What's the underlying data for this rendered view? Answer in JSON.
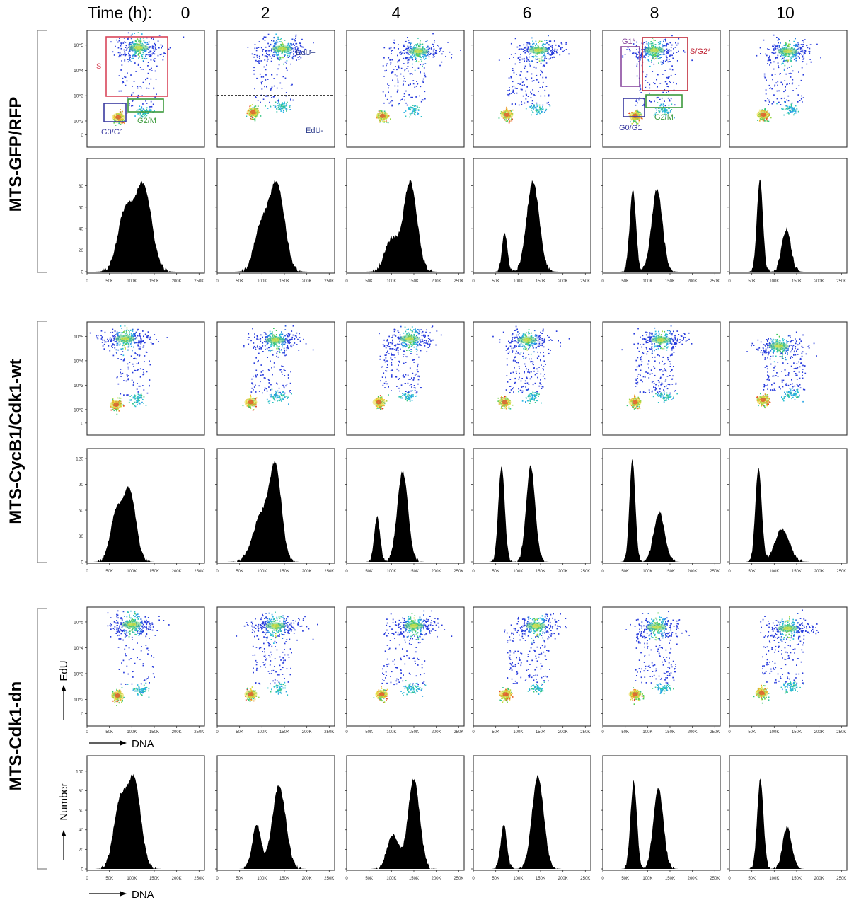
{
  "figure": {
    "time_label": "Time (h):",
    "time_points": [
      "0",
      "2",
      "4",
      "6",
      "8",
      "10"
    ],
    "conditions": [
      "MTS-GFP/RFP",
      "MTS-CycB1/Cdk1-wt",
      "MTS-Cdk1-dn"
    ],
    "axis_labels": {
      "edu": "EdU",
      "dna": "DNA",
      "number": "Number"
    },
    "gates_t0": {
      "s": "S",
      "g0g1": "G0/G1",
      "g2m": "G2/M"
    },
    "gates_t2": {
      "edu_pos": "EdU+",
      "edu_neg": "EdU-"
    },
    "gates_t8": {
      "g1star": "G1*",
      "sg2star": "S/G2*",
      "g0g1": "G0/G1",
      "g2m": "G2/M"
    },
    "colors": {
      "s_gate": "#d9465a",
      "g0g1_gate": "#3a3aa0",
      "g2m_gate": "#3c9a3c",
      "g1star_gate": "#8a4aa0",
      "sg2star_gate": "#c02838",
      "hist_fill": "#000000"
    }
  },
  "chart_data": {
    "type": "scatter",
    "subtype": "flow-cytometry density dot plots with DNA histograms",
    "x_axis": {
      "label": "DNA",
      "ticks": [
        "0",
        "50K",
        "100K",
        "150K",
        "200K",
        "250K"
      ],
      "range": [
        0,
        262144
      ]
    },
    "scatter_y_axis": {
      "label": "EdU",
      "ticks": [
        "0",
        "10^2",
        "10^3",
        "10^4",
        "10^5"
      ]
    },
    "hist_y_axis": {
      "label": "Number",
      "ticks_by_row": [
        [
          "0",
          "20",
          "40",
          "60",
          "80"
        ],
        [
          "0",
          "30",
          "60",
          "90",
          "120"
        ],
        [
          "0",
          "20",
          "40",
          "60",
          "80",
          "100"
        ]
      ],
      "max_by_row": [
        100,
        125,
        110
      ]
    },
    "histograms": [
      {
        "condition": "MTS-GFP/RFP",
        "series": [
          {
            "time": "0",
            "g1": {
              "mu": 85000,
              "sigma": 17000,
              "amp": 55
            },
            "g2": {
              "mu": 126000,
              "sigma": 18000,
              "amp": 80
            }
          },
          {
            "time": "2",
            "g1": {
              "mu": 97000,
              "sigma": 15000,
              "amp": 40
            },
            "g2": {
              "mu": 133000,
              "sigma": 17000,
              "amp": 82
            }
          },
          {
            "time": "4",
            "g1": {
              "mu": 100000,
              "sigma": 15000,
              "amp": 30
            },
            "g2": {
              "mu": 142000,
              "sigma": 15000,
              "amp": 84
            }
          },
          {
            "time": "6",
            "g1": {
              "mu": 70000,
              "sigma": 6000,
              "amp": 36
            },
            "g2": {
              "mu": 133000,
              "sigma": 14000,
              "amp": 84
            }
          },
          {
            "time": "8",
            "g1": {
              "mu": 67000,
              "sigma": 7000,
              "amp": 76
            },
            "g2": {
              "mu": 121000,
              "sigma": 12000,
              "amp": 77
            }
          },
          {
            "time": "10",
            "g1": {
              "mu": 68000,
              "sigma": 6500,
              "amp": 86
            },
            "g2": {
              "mu": 127000,
              "sigma": 10000,
              "amp": 40
            }
          }
        ]
      },
      {
        "condition": "MTS-CycB1/Cdk1-wt",
        "series": [
          {
            "time": "0",
            "g1": {
              "mu": 65000,
              "sigma": 13000,
              "amp": 55
            },
            "g2": {
              "mu": 95000,
              "sigma": 14000,
              "amp": 82
            }
          },
          {
            "time": "2",
            "g1": {
              "mu": 100000,
              "sigma": 20000,
              "amp": 55
            },
            "g2": {
              "mu": 131000,
              "sigma": 13000,
              "amp": 98
            }
          },
          {
            "time": "4",
            "g1": {
              "mu": 68000,
              "sigma": 6500,
              "amp": 52
            },
            "g2": {
              "mu": 125000,
              "sigma": 12000,
              "amp": 105
            }
          },
          {
            "time": "6",
            "g1": {
              "mu": 63000,
              "sigma": 7000,
              "amp": 112
            },
            "g2": {
              "mu": 128000,
              "sigma": 10000,
              "amp": 112
            }
          },
          {
            "time": "8",
            "g1": {
              "mu": 66000,
              "sigma": 6500,
              "amp": 118
            },
            "g2": {
              "mu": 126000,
              "sigma": 12000,
              "amp": 58
            }
          },
          {
            "time": "10",
            "g1": {
              "mu": 65000,
              "sigma": 7000,
              "amp": 110
            },
            "g2": {
              "mu": 118000,
              "sigma": 16000,
              "amp": 38
            }
          }
        ]
      },
      {
        "condition": "MTS-Cdk1-dn",
        "series": [
          {
            "time": "0",
            "g1": {
              "mu": 73000,
              "sigma": 14000,
              "amp": 65
            },
            "g2": {
              "mu": 105000,
              "sigma": 15000,
              "amp": 90
            }
          },
          {
            "time": "2",
            "g1": {
              "mu": 88000,
              "sigma": 10000,
              "amp": 45
            },
            "g2": {
              "mu": 138000,
              "sigma": 15000,
              "amp": 85
            }
          },
          {
            "time": "4",
            "g1": {
              "mu": 103000,
              "sigma": 13000,
              "amp": 35
            },
            "g2": {
              "mu": 150000,
              "sigma": 13000,
              "amp": 92
            }
          },
          {
            "time": "6",
            "g1": {
              "mu": 68000,
              "sigma": 7000,
              "amp": 45
            },
            "g2": {
              "mu": 144000,
              "sigma": 13000,
              "amp": 95
            }
          },
          {
            "time": "8",
            "g1": {
              "mu": 69000,
              "sigma": 7000,
              "amp": 90
            },
            "g2": {
              "mu": 124000,
              "sigma": 11000,
              "amp": 83
            }
          },
          {
            "time": "10",
            "g1": {
              "mu": 69000,
              "sigma": 7000,
              "amp": 92
            },
            "g2": {
              "mu": 129000,
              "sigma": 10000,
              "amp": 43
            }
          }
        ]
      }
    ],
    "scatter_populations": [
      {
        "condition": "MTS-GFP/RFP",
        "series": [
          {
            "time": "0",
            "g1_dna": 70000,
            "g1_edu": 2.15,
            "g2_dna": 125000,
            "edu_high_dna": 115000,
            "edu_high_level": 4.9,
            "edu_high_fraction": 0.55
          },
          {
            "time": "2",
            "g1_dna": 80000,
            "g1_edu": 2.35,
            "g2_dna": 140000,
            "edu_high_dna": 145000,
            "edu_high_level": 4.85,
            "edu_high_fraction": 0.55
          },
          {
            "time": "4",
            "g1_dna": 80000,
            "g1_edu": 2.2,
            "g2_dna": 145000,
            "edu_high_dna": 160000,
            "edu_high_level": 4.75,
            "edu_high_fraction": 0.5
          },
          {
            "time": "6",
            "g1_dna": 75000,
            "g1_edu": 2.25,
            "g2_dna": 140000,
            "edu_high_dna": 145000,
            "edu_high_level": 4.8,
            "edu_high_fraction": 0.5
          },
          {
            "time": "8",
            "g1_dna": 72000,
            "g1_edu": 2.2,
            "g2_dna": 135000,
            "edu_high_dna": 115000,
            "edu_high_level": 4.8,
            "edu_high_fraction": 0.5
          },
          {
            "time": "10",
            "g1_dna": 75000,
            "g1_edu": 2.25,
            "g2_dna": 135000,
            "edu_high_dna": 130000,
            "edu_high_level": 4.75,
            "edu_high_fraction": 0.5
          }
        ]
      },
      {
        "condition": "MTS-CycB1/Cdk1-wt",
        "series": [
          {
            "time": "0",
            "g1_dna": 65000,
            "g1_edu": 2.2,
            "g2_dna": 110000,
            "edu_high_dna": 85000,
            "edu_high_level": 4.9,
            "edu_high_fraction": 0.55
          },
          {
            "time": "2",
            "g1_dna": 75000,
            "g1_edu": 2.3,
            "g2_dna": 135000,
            "edu_high_dna": 130000,
            "edu_high_level": 4.85,
            "edu_high_fraction": 0.5
          },
          {
            "time": "4",
            "g1_dna": 72000,
            "g1_edu": 2.3,
            "g2_dna": 135000,
            "edu_high_dna": 140000,
            "edu_high_level": 4.9,
            "edu_high_fraction": 0.45
          },
          {
            "time": "6",
            "g1_dna": 70000,
            "g1_edu": 2.3,
            "g2_dna": 130000,
            "edu_high_dna": 120000,
            "edu_high_level": 4.85,
            "edu_high_fraction": 0.45
          },
          {
            "time": "8",
            "g1_dna": 72000,
            "g1_edu": 2.3,
            "g2_dna": 135000,
            "edu_high_dna": 130000,
            "edu_high_level": 4.85,
            "edu_high_fraction": 0.45
          },
          {
            "time": "10",
            "g1_dna": 75000,
            "g1_edu": 2.4,
            "g2_dna": 140000,
            "edu_high_dna": 110000,
            "edu_high_level": 4.6,
            "edu_high_fraction": 0.45
          }
        ]
      },
      {
        "condition": "MTS-Cdk1-dn",
        "series": [
          {
            "time": "0",
            "g1_dna": 68000,
            "g1_edu": 2.15,
            "g2_dna": 120000,
            "edu_high_dna": 100000,
            "edu_high_level": 4.9,
            "edu_high_fraction": 0.55
          },
          {
            "time": "2",
            "g1_dna": 75000,
            "g1_edu": 2.2,
            "g2_dna": 135000,
            "edu_high_dna": 130000,
            "edu_high_level": 4.85,
            "edu_high_fraction": 0.55
          },
          {
            "time": "4",
            "g1_dna": 78000,
            "g1_edu": 2.2,
            "g2_dna": 145000,
            "edu_high_dna": 150000,
            "edu_high_level": 4.85,
            "edu_high_fraction": 0.5
          },
          {
            "time": "6",
            "g1_dna": 72000,
            "g1_edu": 2.2,
            "g2_dna": 140000,
            "edu_high_dna": 140000,
            "edu_high_level": 4.85,
            "edu_high_fraction": 0.45
          },
          {
            "time": "8",
            "g1_dna": 72000,
            "g1_edu": 2.2,
            "g2_dna": 135000,
            "edu_high_dna": 120000,
            "edu_high_level": 4.8,
            "edu_high_fraction": 0.45
          },
          {
            "time": "10",
            "g1_dna": 72000,
            "g1_edu": 2.25,
            "g2_dna": 135000,
            "edu_high_dna": 130000,
            "edu_high_level": 4.75,
            "edu_high_fraction": 0.5
          }
        ]
      }
    ]
  }
}
